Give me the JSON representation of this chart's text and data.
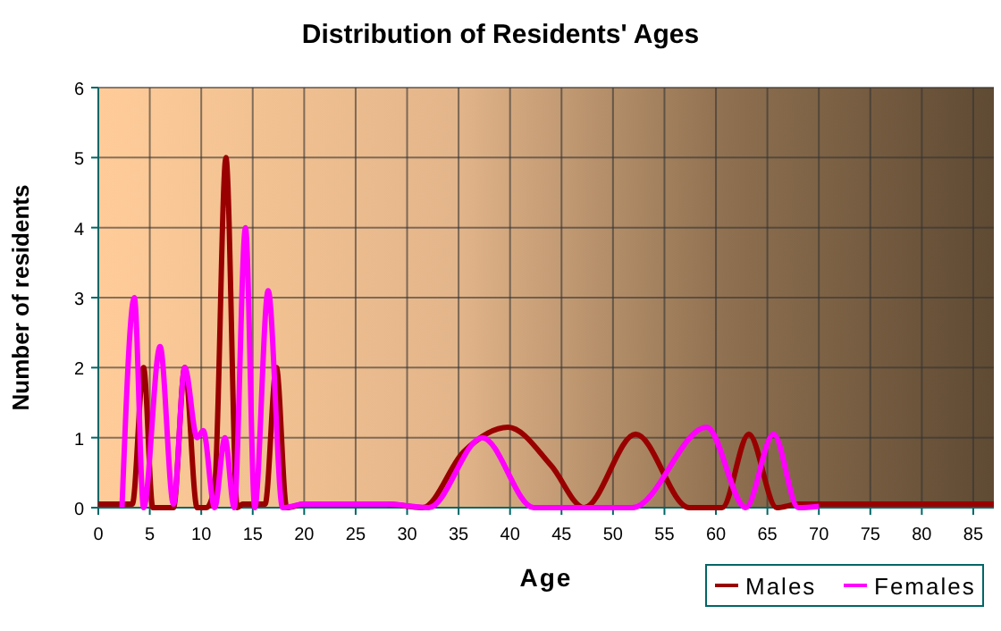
{
  "chart_data": {
    "type": "line",
    "title": "Distribution of Residents' Ages",
    "xlabel": "Age",
    "ylabel": "Number of residents",
    "xlim": [
      0,
      87
    ],
    "ylim": [
      0,
      6
    ],
    "xticks": [
      0,
      5,
      10,
      15,
      20,
      25,
      30,
      35,
      40,
      45,
      50,
      55,
      60,
      65,
      70,
      75,
      80,
      85
    ],
    "yticks": [
      0,
      1,
      2,
      3,
      4,
      5,
      6
    ],
    "grid": true,
    "legend": "bottom right",
    "marker": "none",
    "line_style": "solid",
    "series": [
      {
        "name": "Males",
        "color": "#990000",
        "x": [
          0,
          3.3,
          4.4,
          5.3,
          7.3,
          8.4,
          9.6,
          10.5,
          11.3,
          12.4,
          13.5,
          14,
          16.2,
          17.3,
          18.3,
          20,
          28,
          31.5,
          35.5,
          39.8,
          44,
          47.2,
          52.2,
          57.4,
          60.6,
          63.2,
          65.9,
          68,
          87
        ],
        "values": [
          0.05,
          0.05,
          2,
          0,
          0,
          2,
          0,
          0,
          0.3,
          5,
          0,
          0.05,
          0.05,
          2,
          0,
          0.05,
          0.05,
          0,
          0.8,
          1.15,
          0.6,
          0,
          1.05,
          0,
          0,
          1.05,
          0,
          0.05,
          0.05
        ]
      },
      {
        "name": "Females",
        "color": "#ff00ff",
        "x": [
          2.3,
          3.5,
          4.4,
          6,
          7.3,
          8.4,
          9.6,
          10.2,
          11.3,
          12.3,
          13.2,
          14.3,
          15.2,
          16.5,
          17.9,
          20,
          28,
          32.1,
          37.3,
          42.3,
          51.9,
          59.1,
          62.9,
          65.6,
          68,
          70
        ],
        "values": [
          0,
          3,
          0,
          2.3,
          0.05,
          2,
          1,
          1.1,
          0,
          1,
          0,
          4,
          0,
          3.1,
          0,
          0.05,
          0.05,
          0,
          1,
          0,
          0,
          1.15,
          0,
          1.05,
          0,
          0.02
        ]
      }
    ]
  }
}
